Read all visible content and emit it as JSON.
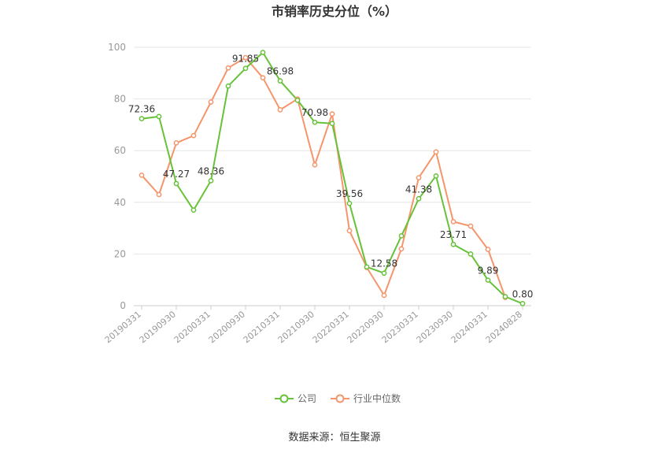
{
  "chart_data": {
    "type": "line",
    "title": "市销率历史分位（%）",
    "source": "数据来源：恒生聚源",
    "xlabel": "",
    "ylabel": "",
    "ylim": [
      0,
      100
    ],
    "yticks": [
      "0",
      "20",
      "40",
      "60",
      "80",
      "100"
    ],
    "grid": true,
    "legend_position": "bottom-center",
    "x_tick_labels": [
      "20190331",
      "20190930",
      "20200331",
      "20200930",
      "20210331",
      "20210930",
      "20220331",
      "20220930",
      "20230331",
      "20230930",
      "20240331",
      "20240828"
    ],
    "x": [
      "20190331",
      "20190630",
      "20190930",
      "20191231",
      "20200331",
      "20200630",
      "20200930",
      "20201231",
      "20210331",
      "20210630",
      "20210930",
      "20211231",
      "20220331",
      "20220630",
      "20220930",
      "20221231",
      "20230331",
      "20230630",
      "20230930",
      "20231231",
      "20240331",
      "20240630",
      "20240828"
    ],
    "series": [
      {
        "name": "公司",
        "color": "#67c23a",
        "values": [
          72.36,
          73.2,
          47.27,
          37.0,
          48.36,
          85.0,
          91.85,
          98.0,
          86.98,
          79.5,
          70.98,
          70.5,
          39.56,
          15.0,
          12.58,
          27.0,
          41.38,
          50.2,
          23.71,
          20.0,
          9.89,
          3.5,
          0.8
        ],
        "labels": [
          "72.36",
          "",
          "47.27",
          "",
          "48.36",
          "",
          "91.85",
          "",
          "86.98",
          "",
          "70.98",
          "",
          "39.56",
          "",
          "12.58",
          "",
          "41.38",
          "",
          "23.71",
          "",
          "9.89",
          "",
          "0.80"
        ]
      },
      {
        "name": "行业中位数",
        "color": "#f5956b",
        "values": [
          50.5,
          43.0,
          63.0,
          65.8,
          78.8,
          92.0,
          96.0,
          88.2,
          75.8,
          80.0,
          54.5,
          74.2,
          29.0,
          14.8,
          4.0,
          22.0,
          49.5,
          59.5,
          32.5,
          30.8,
          21.8,
          3.2,
          null
        ],
        "labels": []
      }
    ]
  }
}
